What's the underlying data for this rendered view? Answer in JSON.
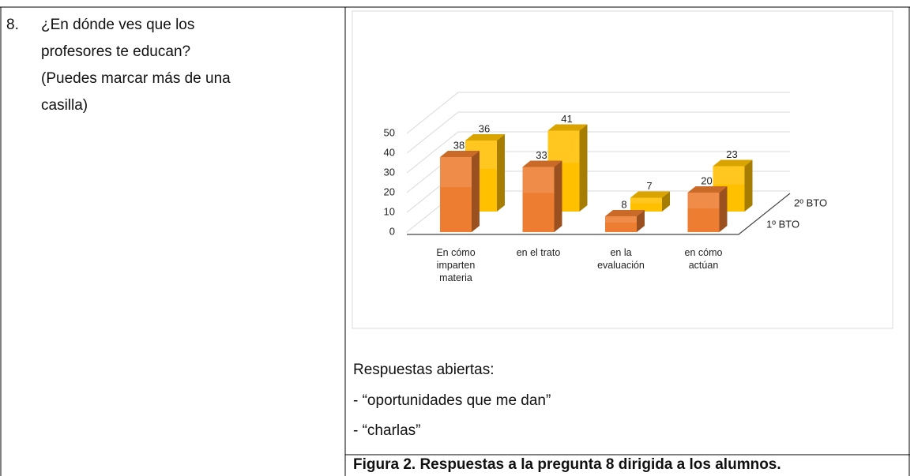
{
  "question": {
    "number": "8.",
    "text_lines": [
      "¿En dónde ves que los",
      "profesores te educan?",
      "(Puedes marcar más de una",
      "casilla)"
    ]
  },
  "chart_data": {
    "type": "bar3d",
    "categories": [
      "En cómo imparten materia",
      "en el trato",
      "en la evaluación",
      "en cómo actúan"
    ],
    "series": [
      {
        "name": "1º BTO",
        "color": "#ed7d31",
        "values": [
          38,
          33,
          8,
          20
        ]
      },
      {
        "name": "2º BTO",
        "color": "#ffc000",
        "values": [
          36,
          41,
          7,
          23
        ]
      }
    ],
    "ylim": [
      0,
      50
    ],
    "yticks": [
      0,
      10,
      20,
      30,
      40,
      50
    ],
    "grid": true
  },
  "open_answers": {
    "heading": "Respuestas abiertas:",
    "items": [
      "- “oportunidades que me dan”",
      "- “charlas”"
    ]
  },
  "caption": "Figura 2. Respuestas a la pregunta 8 dirigida a los alumnos."
}
